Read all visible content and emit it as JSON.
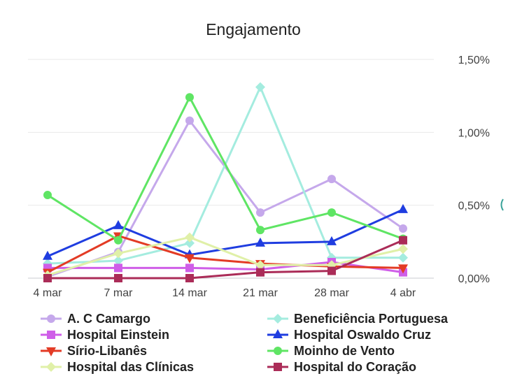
{
  "chart_data": {
    "type": "line",
    "title": "Engajamento",
    "x": [
      "4 mar",
      "7 mar",
      "14 mar",
      "21 mar",
      "28 mar",
      "4 abr"
    ],
    "y_ticks": [
      "0,00%",
      "0,50%",
      "1,00%",
      "1,50%"
    ],
    "ylim": [
      0,
      1.5
    ],
    "y_axis_position": "right",
    "grid": true,
    "legend_position": "bottom",
    "series": [
      {
        "name": "A. C Camargo",
        "color": "#c5a8eb",
        "marker": "circle",
        "values": [
          0.01,
          0.18,
          1.08,
          0.45,
          0.68,
          0.34
        ]
      },
      {
        "name": "Beneficiência Portuguesa",
        "color": "#a4ecdf",
        "marker": "diamond",
        "values": [
          0.1,
          0.12,
          0.24,
          1.31,
          0.14,
          0.14
        ]
      },
      {
        "name": "Hospital Einstein",
        "color": "#cf5ee8",
        "marker": "square",
        "values": [
          0.07,
          0.07,
          0.07,
          0.06,
          0.11,
          0.04
        ]
      },
      {
        "name": "Hospital Oswaldo Cruz",
        "color": "#1f3de0",
        "marker": "triangle-up",
        "values": [
          0.15,
          0.36,
          0.16,
          0.24,
          0.25,
          0.47
        ]
      },
      {
        "name": "Sírio-Libanês",
        "color": "#e33b25",
        "marker": "triangle-down",
        "values": [
          0.04,
          0.29,
          0.14,
          0.1,
          0.08,
          0.07
        ]
      },
      {
        "name": "Moinho de Vento",
        "color": "#5fe564",
        "marker": "circle",
        "values": [
          0.57,
          0.26,
          1.24,
          0.33,
          0.45,
          0.27
        ]
      },
      {
        "name": "Hospital das Clínicas",
        "color": "#e0f0a8",
        "marker": "diamond",
        "values": [
          0.02,
          0.17,
          0.28,
          0.09,
          0.09,
          0.2
        ]
      },
      {
        "name": "Hospital do Coração",
        "color": "#ab2c58",
        "marker": "square",
        "values": [
          0.0,
          0.0,
          0.0,
          0.04,
          0.05,
          0.26
        ]
      }
    ]
  }
}
